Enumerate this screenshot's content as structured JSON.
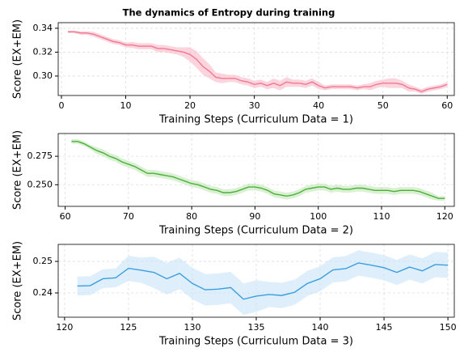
{
  "chart_data": [
    {
      "type": "line",
      "title": "The dynamics of Entropy during training",
      "xlabel": "Training Steps (Curriculum Data = 1)",
      "ylabel": "Score (EX+EM)",
      "x": [
        1,
        2,
        3,
        4,
        5,
        6,
        7,
        8,
        9,
        10,
        11,
        12,
        13,
        14,
        15,
        16,
        17,
        18,
        19,
        20,
        21,
        22,
        23,
        24,
        25,
        26,
        27,
        28,
        29,
        30,
        31,
        32,
        33,
        34,
        35,
        36,
        37,
        38,
        39,
        40,
        41,
        42,
        43,
        44,
        45,
        46,
        47,
        48,
        49,
        50,
        51,
        52,
        53,
        54,
        55,
        56,
        57,
        58,
        59,
        60
      ],
      "series": [
        {
          "color": "#f07890",
          "band_color": "#f9b8c6",
          "values": [
            0.337,
            0.337,
            0.336,
            0.336,
            0.335,
            0.333,
            0.331,
            0.329,
            0.328,
            0.326,
            0.326,
            0.325,
            0.325,
            0.325,
            0.323,
            0.323,
            0.322,
            0.321,
            0.32,
            0.318,
            0.314,
            0.308,
            0.304,
            0.299,
            0.298,
            0.298,
            0.298,
            0.296,
            0.295,
            0.293,
            0.294,
            0.292,
            0.294,
            0.292,
            0.295,
            0.294,
            0.294,
            0.293,
            0.295,
            0.292,
            0.29,
            0.291,
            0.291,
            0.291,
            0.291,
            0.29,
            0.291,
            0.291,
            0.293,
            0.294,
            0.294,
            0.294,
            0.293,
            0.29,
            0.289,
            0.287,
            0.289,
            0.29,
            0.291,
            0.293
          ],
          "errors": [
            0.001,
            0.001,
            0.0015,
            0.0015,
            0.002,
            0.002,
            0.002,
            0.002,
            0.002,
            0.002,
            0.0025,
            0.0025,
            0.0025,
            0.0025,
            0.003,
            0.003,
            0.003,
            0.003,
            0.004,
            0.006,
            0.007,
            0.007,
            0.006,
            0.004,
            0.004,
            0.003,
            0.003,
            0.003,
            0.003,
            0.003,
            0.003,
            0.003,
            0.004,
            0.004,
            0.004,
            0.003,
            0.003,
            0.003,
            0.003,
            0.003,
            0.002,
            0.002,
            0.002,
            0.002,
            0.002,
            0.002,
            0.002,
            0.003,
            0.003,
            0.003,
            0.004,
            0.004,
            0.003,
            0.003,
            0.002,
            0.002,
            0.002,
            0.002,
            0.002,
            0.002
          ]
        }
      ],
      "xlim": [
        -0.5,
        61.1
      ],
      "ylim": [
        0.2837,
        0.3447
      ],
      "xticks": [
        0,
        10,
        20,
        30,
        40,
        50,
        60
      ],
      "yticks": [
        {
          "value": 0.3,
          "label": "0.30"
        },
        0.32,
        0.34
      ],
      "grid": true
    },
    {
      "type": "line",
      "xlabel": "Training Steps (Curriculum Data = 2)",
      "ylabel": "Score (EX+EM)",
      "x": [
        61,
        62,
        63,
        64,
        65,
        66,
        67,
        68,
        69,
        70,
        71,
        72,
        73,
        74,
        75,
        76,
        77,
        78,
        79,
        80,
        81,
        82,
        83,
        84,
        85,
        86,
        87,
        88,
        89,
        90,
        91,
        92,
        93,
        94,
        95,
        96,
        97,
        98,
        99,
        100,
        101,
        102,
        103,
        104,
        105,
        106,
        107,
        108,
        109,
        110,
        111,
        112,
        113,
        114,
        115,
        116,
        117,
        118,
        119,
        120
      ],
      "series": [
        {
          "color": "#4caf3a",
          "band_color": "#bfe6b4",
          "values": [
            0.288,
            0.288,
            0.286,
            0.283,
            0.28,
            0.278,
            0.275,
            0.273,
            0.27,
            0.268,
            0.266,
            0.263,
            0.26,
            0.26,
            0.259,
            0.258,
            0.257,
            0.255,
            0.253,
            0.251,
            0.25,
            0.248,
            0.246,
            0.245,
            0.243,
            0.243,
            0.244,
            0.246,
            0.248,
            0.248,
            0.247,
            0.245,
            0.242,
            0.241,
            0.24,
            0.241,
            0.243,
            0.246,
            0.247,
            0.248,
            0.248,
            0.246,
            0.247,
            0.246,
            0.246,
            0.247,
            0.247,
            0.246,
            0.245,
            0.245,
            0.245,
            0.244,
            0.245,
            0.245,
            0.245,
            0.244,
            0.242,
            0.24,
            0.238,
            0.238
          ],
          "errors": [
            0.002,
            0.002,
            0.002,
            0.002,
            0.003,
            0.003,
            0.003,
            0.003,
            0.003,
            0.003,
            0.003,
            0.003,
            0.003,
            0.003,
            0.003,
            0.003,
            0.003,
            0.003,
            0.003,
            0.003,
            0.003,
            0.003,
            0.003,
            0.003,
            0.003,
            0.003,
            0.003,
            0.003,
            0.003,
            0.003,
            0.003,
            0.003,
            0.003,
            0.003,
            0.003,
            0.003,
            0.003,
            0.003,
            0.003,
            0.003,
            0.003,
            0.003,
            0.003,
            0.003,
            0.003,
            0.003,
            0.003,
            0.003,
            0.003,
            0.003,
            0.003,
            0.003,
            0.003,
            0.003,
            0.003,
            0.003,
            0.003,
            0.003,
            0.002,
            0.002
          ]
        }
      ],
      "xlim": [
        58.9,
        121.5
      ],
      "ylim": [
        0.231,
        0.295
      ],
      "xticks": [
        60,
        70,
        80,
        90,
        100,
        110,
        120
      ],
      "yticks": [
        {
          "value": 0.25,
          "label": "0.250"
        },
        {
          "value": 0.275,
          "label": "0.275"
        }
      ],
      "grid": true
    },
    {
      "type": "line",
      "xlabel": "Training Steps (Curriculum Data = 3)",
      "ylabel": "Score (EX+EM)",
      "x": [
        121,
        122,
        123,
        124,
        125,
        126,
        127,
        128,
        129,
        130,
        131,
        132,
        133,
        134,
        135,
        136,
        137,
        138,
        139,
        140,
        141,
        142,
        143,
        144,
        145,
        146,
        147,
        148,
        149,
        150
      ],
      "series": [
        {
          "color": "#3a9ee0",
          "band_color": "#c8e4f8",
          "values": [
            0.2422,
            0.2423,
            0.2445,
            0.2448,
            0.2478,
            0.2472,
            0.2465,
            0.2445,
            0.2462,
            0.243,
            0.241,
            0.2412,
            0.2417,
            0.238,
            0.239,
            0.2395,
            0.2392,
            0.2402,
            0.243,
            0.2445,
            0.2473,
            0.2477,
            0.2495,
            0.2488,
            0.248,
            0.2465,
            0.2482,
            0.247,
            0.249,
            0.2488
          ],
          "errors": [
            0.003,
            0.003,
            0.003,
            0.003,
            0.004,
            0.004,
            0.005,
            0.005,
            0.005,
            0.005,
            0.005,
            0.005,
            0.005,
            0.005,
            0.005,
            0.004,
            0.004,
            0.004,
            0.004,
            0.004,
            0.004,
            0.004,
            0.004,
            0.004,
            0.004,
            0.004,
            0.004,
            0.004,
            0.004,
            0.004
          ]
        }
      ],
      "xlim": [
        119.5,
        150.5
      ],
      "ylim": [
        0.2323,
        0.2554
      ],
      "xticks": [
        120,
        125,
        130,
        135,
        140,
        145,
        150
      ],
      "yticks": [
        0.24,
        0.25
      ],
      "grid": true
    }
  ]
}
